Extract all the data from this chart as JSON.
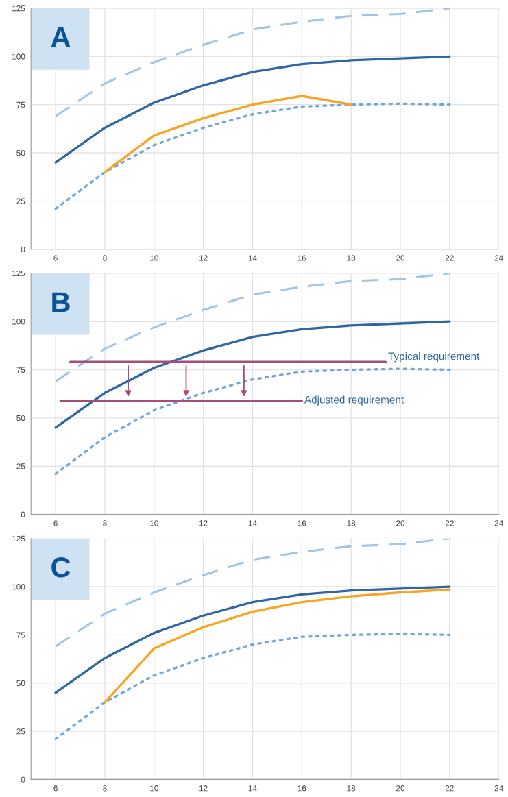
{
  "chart_data": [
    {
      "type": "line",
      "title": "A",
      "x": [
        6,
        8,
        10,
        12,
        14,
        16,
        18,
        20,
        22
      ],
      "xlim": [
        5,
        24
      ],
      "xticks": [
        6,
        8,
        10,
        12,
        14,
        16,
        18,
        20,
        22,
        24
      ],
      "ylim": [
        0,
        125
      ],
      "yticks": [
        0,
        25,
        50,
        75,
        100,
        125
      ],
      "grid": true,
      "legend": false,
      "marker": "none",
      "series": [
        {
          "color": "#9fc5e8",
          "line_style": "dashed",
          "values": [
            69,
            86,
            97,
            106,
            114,
            118,
            121,
            122,
            125
          ]
        },
        {
          "color": "#2f67a3",
          "line_style": "solid",
          "values": [
            45,
            63,
            76,
            85,
            92,
            96,
            98,
            99,
            100
          ]
        },
        {
          "color": "#6fa8dc",
          "line_style": "dotted",
          "values": [
            21,
            40,
            54,
            63,
            70,
            74,
            75,
            75.5,
            75
          ]
        },
        {
          "color": "#f6a623",
          "line_style": "solid",
          "x": [
            8,
            10,
            12,
            14,
            16,
            18
          ],
          "values": [
            40,
            59,
            68,
            75,
            79.5,
            75
          ]
        }
      ]
    },
    {
      "type": "line",
      "title": "B",
      "x": [
        6,
        8,
        10,
        12,
        14,
        16,
        18,
        20,
        22
      ],
      "xlim": [
        5,
        24
      ],
      "xticks": [
        6,
        8,
        10,
        12,
        14,
        16,
        18,
        20,
        22,
        24
      ],
      "ylim": [
        0,
        125
      ],
      "yticks": [
        0,
        25,
        50,
        75,
        100,
        125
      ],
      "grid": true,
      "legend": false,
      "marker": "none",
      "series": [
        {
          "color": "#9fc5e8",
          "line_style": "dashed",
          "values": [
            69,
            86,
            97,
            106,
            114,
            118,
            121,
            122,
            125
          ]
        },
        {
          "color": "#2f67a3",
          "line_style": "solid",
          "values": [
            45,
            63,
            76,
            85,
            92,
            96,
            98,
            99,
            100
          ]
        },
        {
          "color": "#6fa8dc",
          "line_style": "dotted",
          "values": [
            21,
            40,
            54,
            63,
            70,
            74,
            75,
            75.5,
            75
          ]
        },
        {
          "name": "Typical requirement",
          "color": "#a64d79",
          "line_style": "solid",
          "x": [
            6.6,
            19.4
          ],
          "values": [
            79,
            79
          ]
        },
        {
          "name": "Adjusted requirement",
          "color": "#a64d79",
          "line_style": "solid",
          "x": [
            6.2,
            16
          ],
          "values": [
            59,
            59
          ]
        }
      ]
    },
    {
      "type": "line",
      "title": "C",
      "x": [
        6,
        8,
        10,
        12,
        14,
        16,
        18,
        20,
        22
      ],
      "xlim": [
        5,
        24
      ],
      "xticks": [
        6,
        8,
        10,
        12,
        14,
        16,
        18,
        20,
        22,
        24
      ],
      "ylim": [
        0,
        125
      ],
      "yticks": [
        0,
        25,
        50,
        75,
        100,
        125
      ],
      "grid": true,
      "legend": false,
      "marker": "none",
      "series": [
        {
          "color": "#9fc5e8",
          "line_style": "dashed",
          "values": [
            69,
            86,
            97,
            106,
            114,
            118,
            121,
            122,
            125
          ]
        },
        {
          "color": "#2f67a3",
          "line_style": "solid",
          "values": [
            45,
            63,
            76,
            85,
            92,
            96,
            98,
            99,
            100
          ]
        },
        {
          "color": "#6fa8dc",
          "line_style": "dotted",
          "values": [
            21,
            40,
            54,
            63,
            70,
            74,
            75,
            75.5,
            75
          ]
        },
        {
          "color": "#f6a623",
          "line_style": "solid",
          "x": [
            8,
            10,
            12,
            14,
            16,
            18,
            20,
            22
          ],
          "values": [
            40,
            68,
            79,
            87,
            92,
            95,
            97,
            98.5
          ]
        }
      ]
    }
  ]
}
